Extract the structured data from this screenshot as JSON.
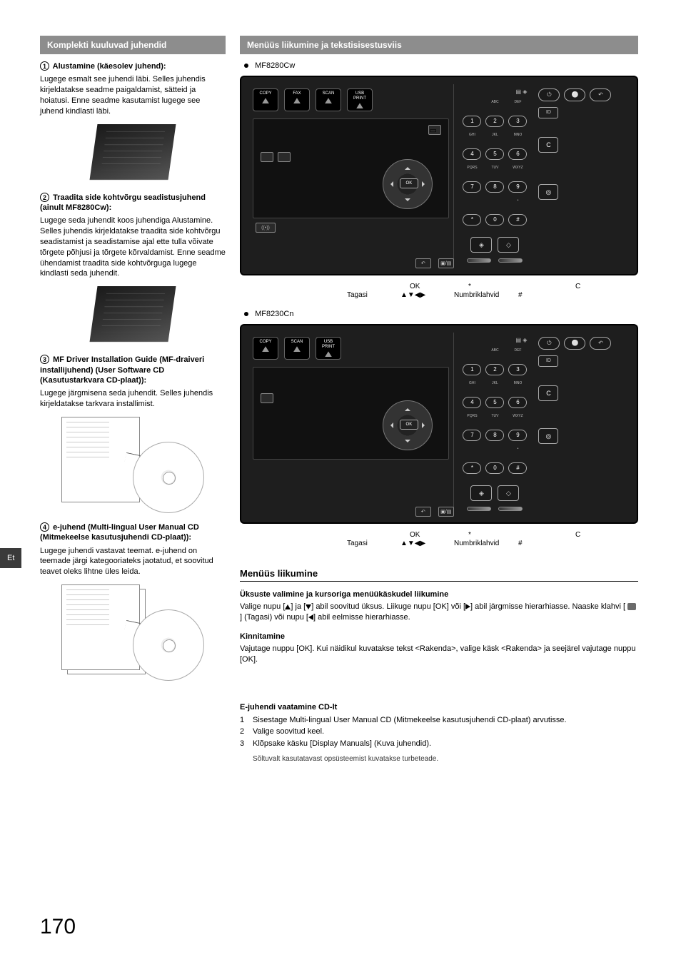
{
  "side_tab": "Et",
  "page_number": "170",
  "left": {
    "section_bar": "Komplekti kuuluvad juhendid",
    "items": [
      {
        "num": "1",
        "title": "Alustamine (käesolev juhend):",
        "body": "Lugege esmalt see juhendi läbi. Selles juhendis kirjeldatakse seadme paigaldamist, sätteid ja hoiatusi. Enne seadme kasutamist lugege see juhend kindlasti läbi."
      },
      {
        "num": "2",
        "title": "Traadita side kohtvõrgu seadistusjuhend (ainult MF8280Cw):",
        "body": "Lugege seda juhendit koos juhendiga Alustamine. Selles juhendis kirjeldatakse traadita side kohtvõrgu seadistamist ja seadistamise ajal ette tulla võivate tõrgete põhjusi ja tõrgete kõrvaldamist. Enne seadme ühendamist traadita side kohtvõrguga lugege kindlasti seda juhendit."
      },
      {
        "num": "3",
        "title": "MF Driver Installation Guide (MF-draiveri installijuhend) (User Software CD (Kasutustarkvara CD-plaat)):",
        "body": "Lugege järgmisena seda juhendit. Selles juhendis kirjeldatakse tarkvara installimist."
      },
      {
        "num": "4",
        "title": "e-juhend (Multi-lingual User Manual CD (Mitmekeelse kasutusjuhendi CD-plaat)):",
        "body": "Lugege juhendi vastavat teemat. e-juhend on teemade järgi kategooriateks jaotatud, et soovitud teavet oleks lihtne üles leida."
      }
    ]
  },
  "right": {
    "section_bar": "Menüüs liikumine ja tekstisisestusviis",
    "model1": "MF8280Cw",
    "model2": "MF8230Cn",
    "panel": {
      "modes_full": [
        "COPY",
        "FAX",
        "SCAN",
        "USB\nPRINT"
      ],
      "modes_reduced": [
        "COPY",
        "SCAN",
        "USB\nPRINT"
      ],
      "ok": "OK",
      "wifi_icon": "((•))",
      "num_labels_row1": [
        "",
        "ABC",
        "DEF"
      ],
      "num_labels_row2": [
        "GHI",
        "JKL",
        "MNO"
      ],
      "num_labels_row3": [
        "PQRS",
        "TUV",
        "WXYZ"
      ],
      "num_labels_row4": [
        "",
        "",
        "•"
      ],
      "nums": [
        "1",
        "2",
        "3",
        "4",
        "5",
        "6",
        "7",
        "8",
        "9",
        "*",
        "0",
        "#"
      ],
      "id": "ID",
      "c_btn": "C",
      "start_sym": [
        "◇",
        "◇"
      ],
      "stop_sym": "◎"
    },
    "callouts": {
      "tagasi": "Tagasi",
      "ok": "OK",
      "arrows": "▲▼◀▶",
      "numbriklahvid": "Numbriklahvid",
      "star": "*",
      "hash": "#",
      "c": "C"
    },
    "menu_heading": "Menüüs liikumine",
    "sub1_title": "Üksuste valimine ja kursoriga menüükäskudel liikumine",
    "sub1_body_a": "Valige nupu [",
    "sub1_body_b": "] ja [",
    "sub1_body_c": "] abil soovitud üksus. Liikuge nupu [OK] või [",
    "sub1_body_d": "] abil järgmisse hierarhiasse. Naaske klahvi [",
    "sub1_body_e": "] (Tagasi) või nupu [",
    "sub1_body_f": "] abil eelmisse hierarhiasse.",
    "sub2_title": "Kinnitamine",
    "sub2_body": "Vajutage nuppu [OK]. Kui näidikul kuvatakse tekst <Rakenda>, valige käsk <Rakenda> ja seejärel vajutage nuppu [OK].",
    "cd_heading": "E-juhendi vaatamine CD-lt",
    "steps": [
      "Sisestage Multi-lingual User Manual CD (Mitmekeelse kasutusjuhendi CD-plaat) arvutisse.",
      "Valige soovitud keel.",
      "Klõpsake käsku [Display Manuals] (Kuva juhendid)."
    ],
    "footnote": "Sõltuvalt kasutatavast opsüsteemist kuvatakse turbeteade."
  }
}
